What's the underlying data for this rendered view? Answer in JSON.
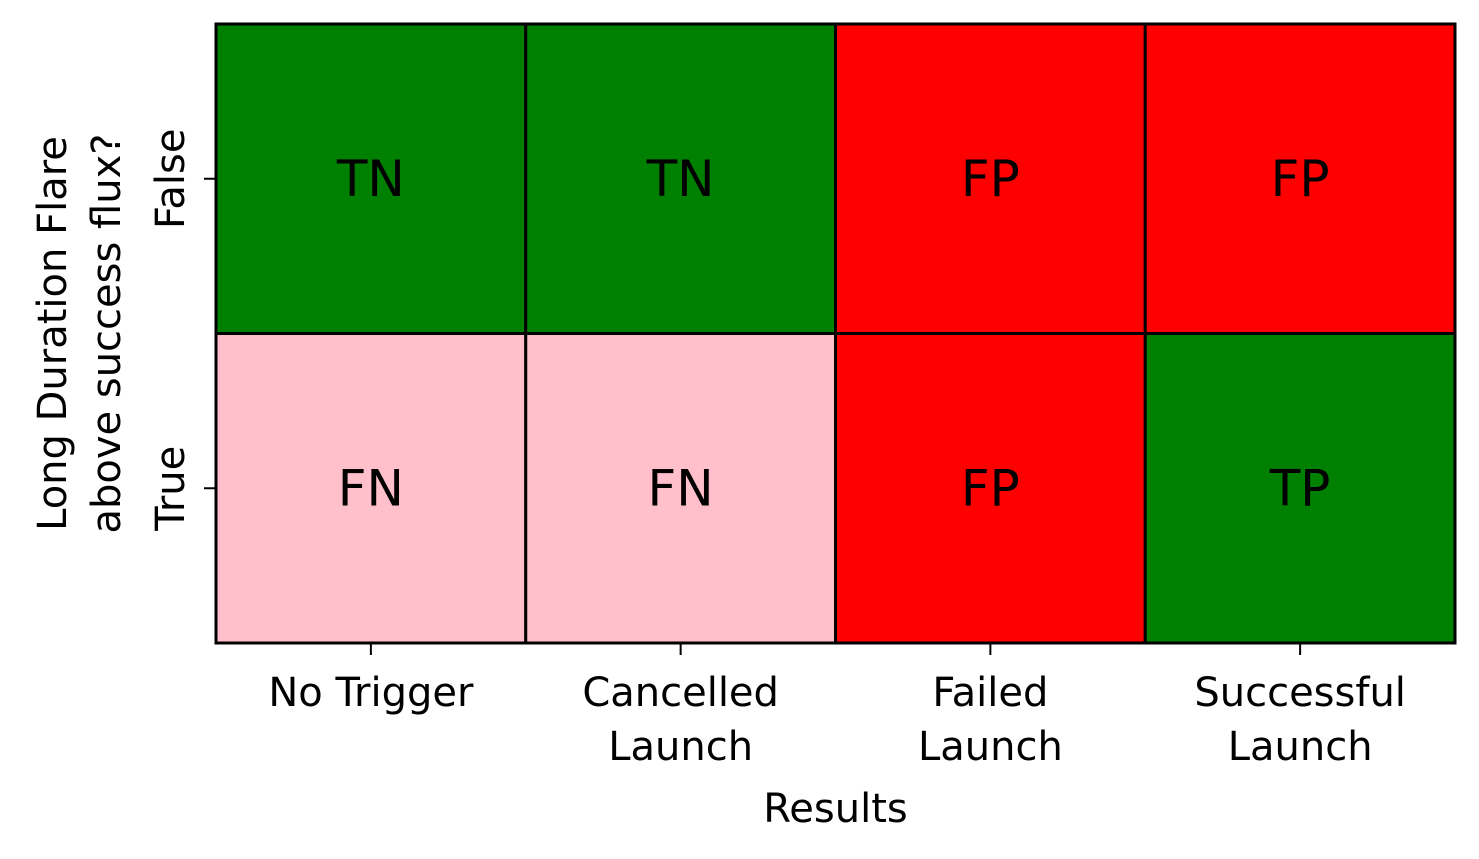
{
  "chart_data": {
    "type": "heatmap",
    "xlabel": "Results",
    "ylabel": [
      "Long Duration Flare",
      "above success flux?"
    ],
    "x_categories": [
      [
        "No Trigger"
      ],
      [
        "Cancelled",
        "Launch"
      ],
      [
        "Failed",
        "Launch"
      ],
      [
        "Successful",
        "Launch"
      ]
    ],
    "y_categories": [
      "False",
      "True"
    ],
    "cells": [
      [
        "TN",
        "TN",
        "FP",
        "FP"
      ],
      [
        "FN",
        "FN",
        "FP",
        "TP"
      ]
    ],
    "colors": {
      "TN": "#008000",
      "TP": "#008000",
      "FP": "#ff0000",
      "FN": "#ffc0cb"
    },
    "grid": true,
    "legend": "none"
  }
}
